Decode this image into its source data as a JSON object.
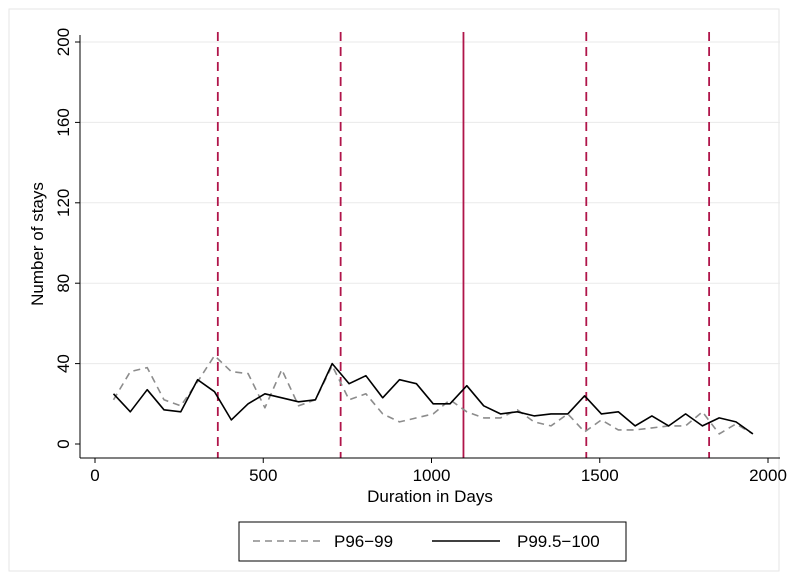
{
  "chart_data": {
    "type": "line",
    "xlabel": "Duration in Days",
    "ylabel": "Number of stays",
    "xlim": [
      0,
      2000
    ],
    "ylim": [
      0,
      200
    ],
    "x_ticks": [
      0,
      500,
      1000,
      1500,
      2000
    ],
    "y_ticks": [
      0,
      40,
      80,
      120,
      160,
      200
    ],
    "x_tick_labels": [
      "0",
      "500",
      "1000",
      "1500",
      "2000"
    ],
    "y_tick_labels": [
      "0",
      "40",
      "80",
      "120",
      "160",
      "200"
    ],
    "grid": "horizontal",
    "legend_position": "bottom",
    "reference_lines": [
      {
        "x": 365,
        "style": "dashed",
        "color": "#b0154a"
      },
      {
        "x": 730,
        "style": "dashed",
        "color": "#b0154a"
      },
      {
        "x": 1095,
        "style": "solid",
        "color": "#b0154a"
      },
      {
        "x": 1460,
        "style": "dashed",
        "color": "#b0154a"
      },
      {
        "x": 1825,
        "style": "dashed",
        "color": "#b0154a"
      }
    ],
    "series": [
      {
        "name": "P96−99",
        "color": "#8c8c8c",
        "style": "dashed",
        "x": [
          55,
          105,
          155,
          205,
          255,
          305,
          355,
          405,
          455,
          505,
          555,
          605,
          655,
          705,
          755,
          805,
          855,
          905,
          955,
          1005,
          1055,
          1105,
          1155,
          1205,
          1255,
          1305,
          1355,
          1405,
          1455,
          1505,
          1555,
          1605,
          1655,
          1705,
          1755,
          1805,
          1855,
          1905,
          1955
        ],
        "y": [
          22,
          36,
          38,
          22,
          19,
          31,
          44,
          36,
          35,
          18,
          37,
          19,
          22,
          39,
          22,
          25,
          15,
          11,
          13,
          15,
          22,
          16,
          13,
          13,
          17,
          11,
          9,
          15,
          6,
          12,
          7,
          7,
          8,
          9,
          9,
          16,
          5,
          10,
          5
        ]
      },
      {
        "name": "P99.5−100",
        "color": "#000000",
        "style": "solid",
        "x": [
          55,
          105,
          155,
          205,
          255,
          305,
          355,
          405,
          455,
          505,
          555,
          605,
          655,
          705,
          755,
          805,
          855,
          905,
          955,
          1005,
          1055,
          1105,
          1155,
          1205,
          1255,
          1305,
          1355,
          1405,
          1455,
          1505,
          1555,
          1605,
          1655,
          1705,
          1755,
          1805,
          1855,
          1905,
          1955
        ],
        "y": [
          25,
          16,
          27,
          17,
          16,
          32,
          26,
          12,
          20,
          25,
          23,
          21,
          22,
          40,
          30,
          34,
          23,
          32,
          30,
          20,
          20,
          29,
          19,
          15,
          16,
          14,
          15,
          15,
          24,
          15,
          16,
          9,
          14,
          9,
          15,
          9,
          13,
          11,
          5
        ]
      }
    ]
  }
}
